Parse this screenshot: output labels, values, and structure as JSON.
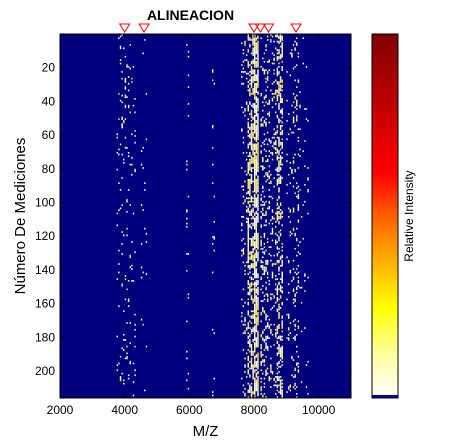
{
  "chart_data": {
    "type": "heatmap",
    "title": "ALINEACION",
    "xlabel": "M/Z",
    "ylabel": "Número De Mediciones",
    "xlim": [
      2000,
      11000
    ],
    "ylim": [
      0,
      216
    ],
    "x_ticks": [
      2000,
      4000,
      6000,
      8000,
      10000
    ],
    "y_ticks": [
      20,
      40,
      60,
      80,
      100,
      120,
      140,
      160,
      180,
      200
    ],
    "y_reversed": true,
    "colormap": "hot",
    "background_color": "#00007f",
    "colorbar_label": "Relative Intensity",
    "colorbar_ticks": [],
    "marker_peaks_mz": [
      4000,
      4600,
      8000,
      8200,
      8450,
      9300
    ],
    "marker_color": "#ff0000",
    "bands": [
      {
        "mz_start": 3750,
        "mz_end": 4350,
        "density": 0.05
      },
      {
        "mz_start": 4500,
        "mz_end": 4700,
        "density": 0.04
      },
      {
        "mz_start": 5900,
        "mz_end": 6000,
        "density": 0.04
      },
      {
        "mz_start": 6700,
        "mz_end": 6800,
        "density": 0.04
      },
      {
        "mz_start": 7600,
        "mz_end": 7800,
        "density": 0.09
      },
      {
        "mz_start": 7800,
        "mz_end": 8000,
        "density": 0.32
      },
      {
        "mz_start": 8000,
        "mz_end": 8150,
        "density": 0.55
      },
      {
        "mz_start": 8200,
        "mz_end": 8450,
        "density": 0.18
      },
      {
        "mz_start": 8450,
        "mz_end": 8700,
        "density": 0.14
      },
      {
        "mz_start": 8700,
        "mz_end": 8900,
        "density": 0.3
      },
      {
        "mz_start": 9000,
        "mz_end": 9200,
        "density": 0.06
      },
      {
        "mz_start": 9200,
        "mz_end": 9400,
        "density": 0.12
      },
      {
        "mz_start": 9400,
        "mz_end": 9700,
        "density": 0.04
      }
    ]
  }
}
